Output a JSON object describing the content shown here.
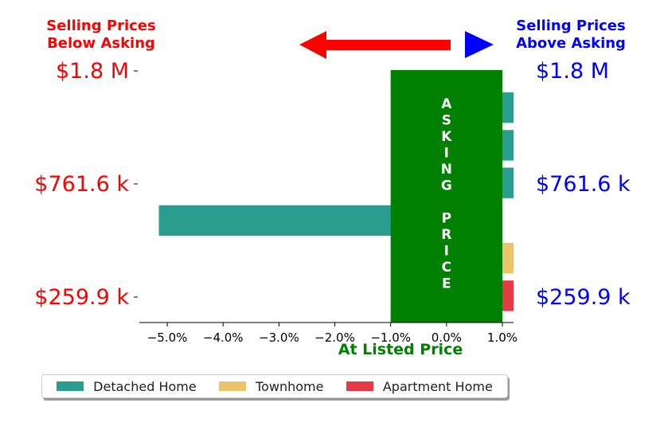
{
  "chart_data": {
    "type": "bar",
    "orientation": "horizontal",
    "xlabel": "At Listed Price",
    "xlim": [
      -5.5,
      1.2
    ],
    "xticks": [
      "−5.0%",
      "−4.0%",
      "−3.0%",
      "−2.0%",
      "−1.0%",
      "0.0%",
      "1.0%"
    ],
    "xtick_values": [
      -5,
      -4,
      -3,
      -2,
      -1,
      0,
      1
    ],
    "left_header": "Selling Prices\nBelow Asking",
    "right_header": "Selling Prices\nAbove Asking",
    "price_labels_left": [
      "$1.8 M",
      "$761.6 k",
      "$259.9 k"
    ],
    "price_labels_right": [
      "$1.8 M",
      "$761.6 k",
      "$259.9 k"
    ],
    "asking_band": {
      "from": -1.0,
      "to": 1.0,
      "text": [
        "A",
        "S",
        "K",
        "I",
        "N",
        "G",
        "",
        "P",
        "R",
        "I",
        "C",
        "E"
      ],
      "color": "#008000"
    },
    "bars": [
      {
        "category": "Detached Home",
        "value": 1.2
      },
      {
        "category": "Detached Home",
        "value": 1.2
      },
      {
        "category": "Detached Home",
        "value": 1.2
      },
      {
        "category": "Detached Home",
        "value": -5.15
      },
      {
        "category": "Townhome",
        "value": 1.2
      },
      {
        "category": "Apartment Home",
        "value": 1.2
      }
    ],
    "legend": [
      {
        "name": "Detached Home",
        "color": "#2a9d8f"
      },
      {
        "name": "Townhome",
        "color": "#e9c46a"
      },
      {
        "name": "Apartment Home",
        "color": "#e63946"
      }
    ],
    "colors": {
      "left_text": "#ff0000",
      "right_text": "#0000ff",
      "xlabel": "#008000",
      "band_text": "#ffffff"
    }
  }
}
